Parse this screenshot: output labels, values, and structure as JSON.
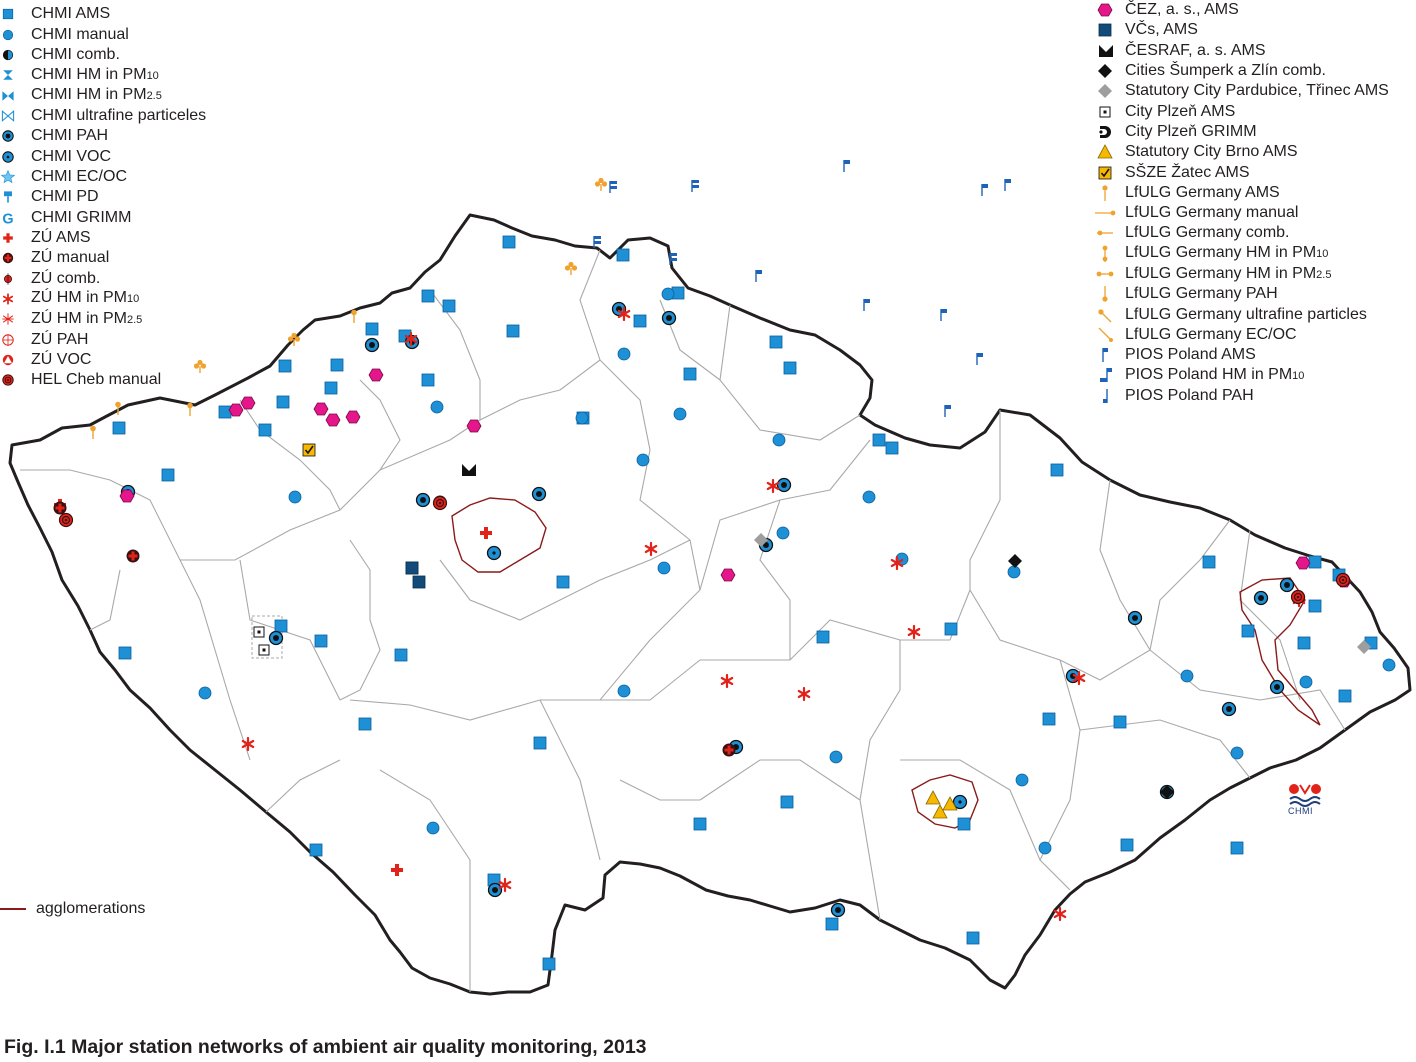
{
  "caption": "Fig. I.1  Major station networks of ambient air quality monitoring, 2013",
  "legend_left": [
    {
      "sym": "sq-blue",
      "label": "CHMI AMS"
    },
    {
      "sym": "circ-blue",
      "label": "CHMI manual"
    },
    {
      "sym": "half-circ",
      "label": "CHMI comb."
    },
    {
      "sym": "hourglass",
      "label": "CHMI HM in PM",
      "sub": "10"
    },
    {
      "sym": "bowtie",
      "label": "CHMI HM in PM",
      "sub": "2.5"
    },
    {
      "sym": "bowtie-open",
      "label": "CHMI ultrafine particeles"
    },
    {
      "sym": "ring-dark",
      "label": "CHMI PAH"
    },
    {
      "sym": "ring-dot",
      "label": "CHMI VOC"
    },
    {
      "sym": "star-cyan",
      "label": "CHMI EC/OC"
    },
    {
      "sym": "pin-blue",
      "label": "CHMI PD"
    },
    {
      "sym": "g-blue",
      "label": "CHMI GRIMM"
    },
    {
      "sym": "cross-red",
      "label": "ZÚ AMS"
    },
    {
      "sym": "circ-cross",
      "label": "ZÚ manual"
    },
    {
      "sym": "circ-red-sm",
      "label": "ZÚ comb."
    },
    {
      "sym": "asterisk-red",
      "label": "ZÚ HM in PM",
      "sub": "10"
    },
    {
      "sym": "asterisk-thin",
      "label": "ZÚ HM in PM",
      "sub": "2.5"
    },
    {
      "sym": "circ-hatch",
      "label": "ZÚ PAH"
    },
    {
      "sym": "tri-red",
      "label": "ZÚ VOC"
    },
    {
      "sym": "target-red",
      "label": "HEL Cheb manual"
    }
  ],
  "legend_right": [
    {
      "sym": "hex-pink",
      "label": "ČEZ, a. s., AMS"
    },
    {
      "sym": "sq-navy",
      "label": "VČs, AMS"
    },
    {
      "sym": "m-black",
      "label": "ČESRAF, a. s. AMS"
    },
    {
      "sym": "diamond-black",
      "label": "Cities Šumperk a Zlín comb."
    },
    {
      "sym": "diamond-grey",
      "label": "Statutory City Pardubice, Třinec AMS"
    },
    {
      "sym": "sq-dot",
      "label": "City Plzeň AMS"
    },
    {
      "sym": "grimm-black",
      "label": "City Plzeň GRIMM"
    },
    {
      "sym": "tri-yellow",
      "label": "Statutory City Brno AMS"
    },
    {
      "sym": "check-yellow",
      "label": "SŠZE Žatec AMS"
    },
    {
      "sym": "flag-o1",
      "label": "LfULG Germany AMS"
    },
    {
      "sym": "flag-o2",
      "label": "LfULG Germany manual"
    },
    {
      "sym": "flag-o3",
      "label": "LfULG Germany comb."
    },
    {
      "sym": "flag-o4",
      "label": "LfULG Germany HM in PM",
      "sub": "10"
    },
    {
      "sym": "flag-o5",
      "label": "LfULG Germany HM in PM",
      "sub": "2.5"
    },
    {
      "sym": "flag-o6",
      "label": "LfULG Germany PAH"
    },
    {
      "sym": "flag-o7",
      "label": "LfULG Germany ultrafine particles"
    },
    {
      "sym": "flag-o8",
      "label": "LfULG Germany EC/OC"
    },
    {
      "sym": "flag-b1",
      "label": "PIOS Poland AMS"
    },
    {
      "sym": "flag-b2",
      "label": "PIOS Poland HM in PM",
      "sub": "10"
    },
    {
      "sym": "flag-b3",
      "label": "PIOS Poland PAH"
    }
  ],
  "agglomerations_label": "agglomerations",
  "logo_text": "CHMI",
  "colors": {
    "chmi_blue": "#1e90d6",
    "chmi_blue_dark": "#0a5f9e",
    "zu_red": "#e2231a",
    "cez_pink": "#e4168a",
    "navy": "#124b7a",
    "lfulg_orange": "#f0a22e",
    "pios_blue": "#1f63b8",
    "brno_yellow": "#f6b800",
    "border": "#231f20",
    "district": "#a9a9a9",
    "agglomeration": "#8b1a1a"
  }
}
